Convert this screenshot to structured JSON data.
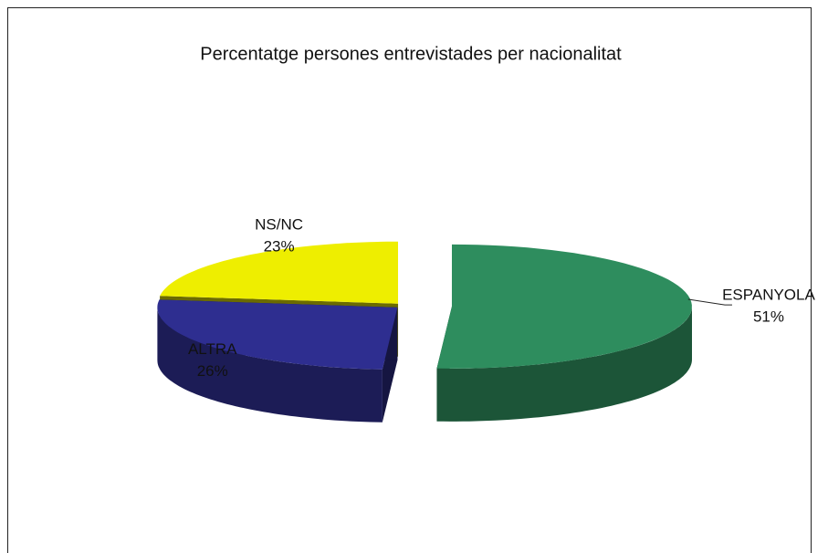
{
  "chart_data": {
    "type": "pie",
    "title": "Percentatge persones entrevistades per nacionalitat",
    "categories": [
      "ESPANYOLA",
      "ALTRA",
      "NS/NC"
    ],
    "values": [
      51,
      26,
      23
    ],
    "value_labels": [
      "51%",
      "26%",
      "23%"
    ],
    "colors": [
      "#2e8d5e",
      "#2e2e90",
      "#eeee00"
    ]
  }
}
